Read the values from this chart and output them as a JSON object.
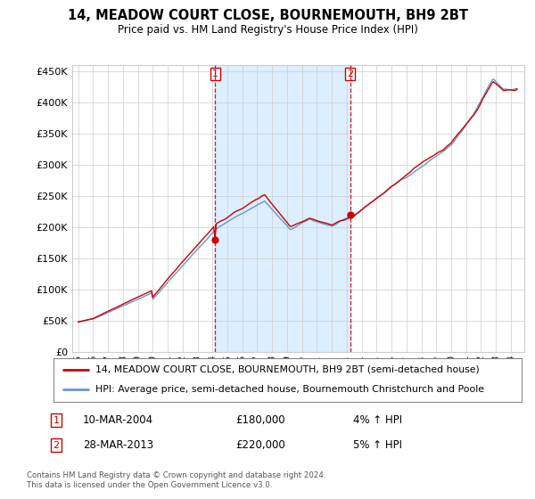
{
  "title": "14, MEADOW COURT CLOSE, BOURNEMOUTH, BH9 2BT",
  "subtitle": "Price paid vs. HM Land Registry's House Price Index (HPI)",
  "legend_line1": "14, MEADOW COURT CLOSE, BOURNEMOUTH, BH9 2BT (semi-detached house)",
  "legend_line2": "HPI: Average price, semi-detached house, Bournemouth Christchurch and Poole",
  "footer": "Contains HM Land Registry data © Crown copyright and database right 2024.\nThis data is licensed under the Open Government Licence v3.0.",
  "sale1_label": "1",
  "sale1_date": "10-MAR-2004",
  "sale1_price": "£180,000",
  "sale1_hpi": "4% ↑ HPI",
  "sale2_label": "2",
  "sale2_date": "28-MAR-2013",
  "sale2_price": "£220,000",
  "sale2_hpi": "5% ↑ HPI",
  "sale1_year": 2004.19,
  "sale1_value": 180000,
  "sale2_year": 2013.24,
  "sale2_value": 220000,
  "ylim": [
    0,
    460000
  ],
  "yticks": [
    0,
    50000,
    100000,
    150000,
    200000,
    250000,
    300000,
    350000,
    400000,
    450000
  ],
  "hpi_color": "#6699cc",
  "sale_color": "#cc0000",
  "dashed_line_color": "#cc0000",
  "shade_color": "#ddeeff",
  "background_color": "#ffffff",
  "grid_color": "#cccccc",
  "xtick_years": [
    1995,
    1996,
    1997,
    1998,
    1999,
    2000,
    2001,
    2002,
    2003,
    2004,
    2005,
    2006,
    2007,
    2008,
    2009,
    2010,
    2011,
    2012,
    2013,
    2014,
    2015,
    2016,
    2017,
    2018,
    2019,
    2020,
    2021,
    2022,
    2023,
    2024
  ]
}
